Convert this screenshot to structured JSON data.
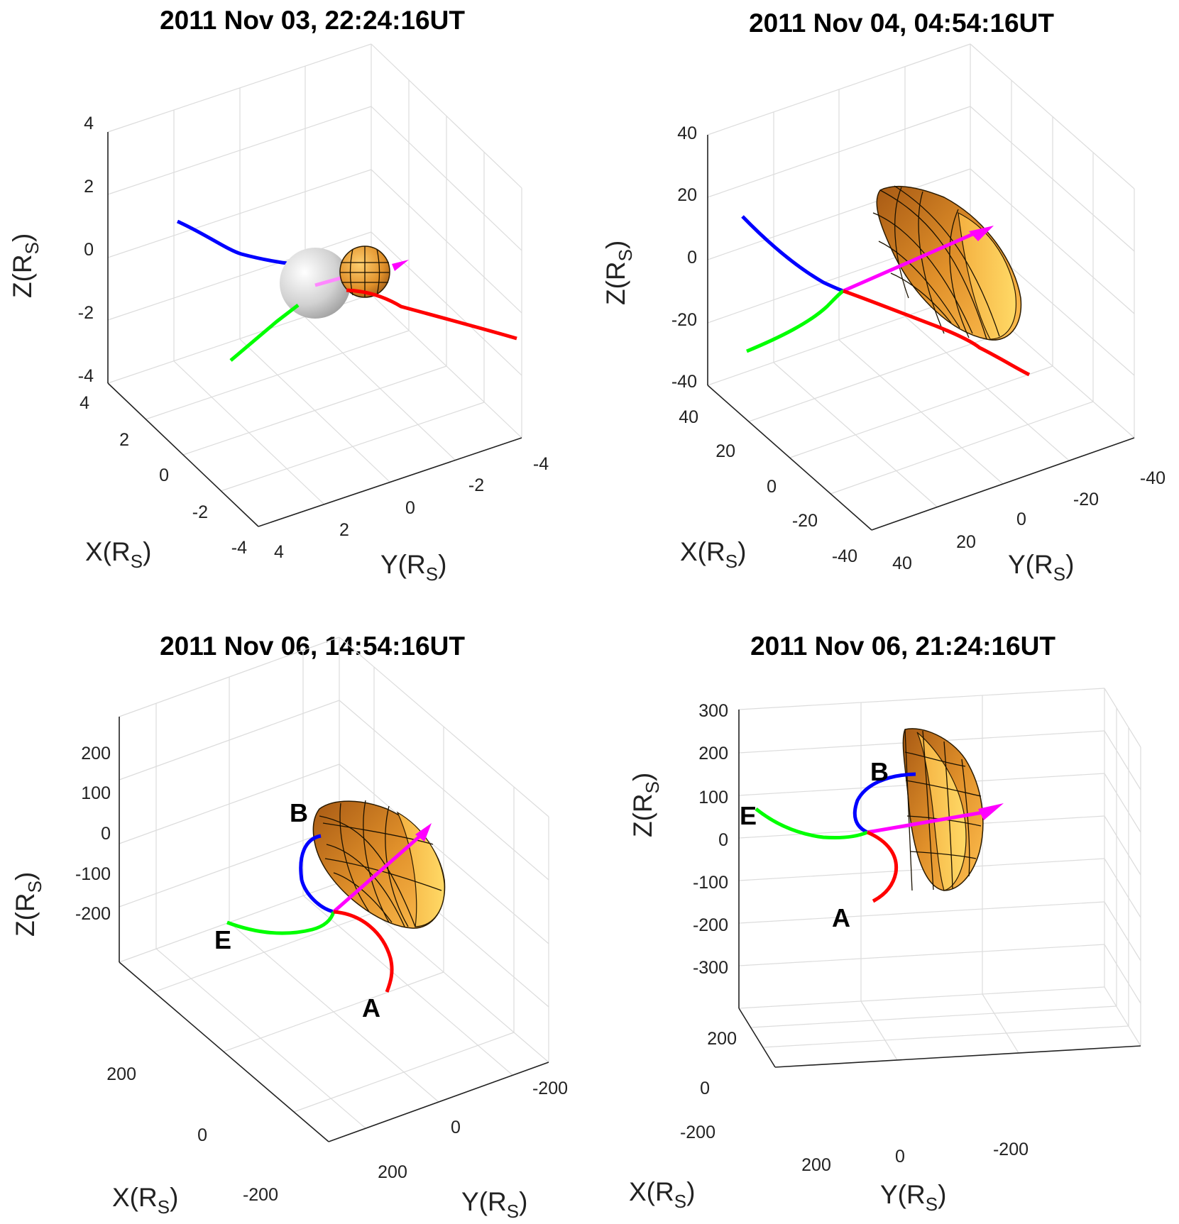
{
  "figure": {
    "curve_colors": {
      "A": "#ff0000",
      "B": "#0000ff",
      "E": "#00ff00",
      "axis": "#ff00ff"
    },
    "surface_color": "#e0902a",
    "sun_color": "#c8c8c8"
  },
  "chart_data": [
    {
      "type": "3d-line",
      "title": "2011 Nov 03, 22:24:16UT",
      "xlabel": "X(R",
      "ylabel": "Y(R",
      "zlabel": "Z(R",
      "label_sub": "S",
      "label_close": ")",
      "x_ticks": [
        "4",
        "2",
        "0",
        "-2",
        "-4"
      ],
      "y_ticks": [
        "4",
        "2",
        "0",
        "-2",
        "-4"
      ],
      "z_ticks": [
        "4",
        "2",
        "0",
        "-2",
        "-4"
      ],
      "xlim": [
        -4,
        4
      ],
      "ylim": [
        -4,
        4
      ],
      "zlim": [
        -4,
        4
      ],
      "curves": [
        {
          "name": "blue-line",
          "color": "#0000ff"
        },
        {
          "name": "green-line",
          "color": "#00ff00"
        },
        {
          "name": "red-line",
          "color": "#ff0000"
        },
        {
          "name": "magenta-axis",
          "color": "#ff00ff"
        }
      ],
      "objects": [
        "Sun sphere",
        "CME shell"
      ],
      "curve_labels": []
    },
    {
      "type": "3d-line",
      "title": "2011 Nov 04, 04:54:16UT",
      "xlabel": "X(R",
      "ylabel": "Y(R",
      "zlabel": "Z(R",
      "label_sub": "S",
      "label_close": ")",
      "x_ticks": [
        "40",
        "20",
        "0",
        "-20",
        "-40"
      ],
      "y_ticks": [
        "40",
        "20",
        "0",
        "-20",
        "-40"
      ],
      "z_ticks": [
        "40",
        "20",
        "0",
        "-20",
        "-40"
      ],
      "xlim": [
        -40,
        40
      ],
      "ylim": [
        -40,
        40
      ],
      "zlim": [
        -40,
        40
      ],
      "curves": [
        {
          "name": "blue-line",
          "color": "#0000ff"
        },
        {
          "name": "green-line",
          "color": "#00ff00"
        },
        {
          "name": "red-line",
          "color": "#ff0000"
        },
        {
          "name": "magenta-axis",
          "color": "#ff00ff"
        }
      ],
      "objects": [
        "CME shell"
      ],
      "curve_labels": []
    },
    {
      "type": "3d-line",
      "title": "2011 Nov 06, 14:54:16UT",
      "xlabel": "X(R",
      "ylabel": "Y(R",
      "zlabel": "Z(R",
      "label_sub": "S",
      "label_close": ")",
      "x_ticks": [
        "200",
        "0",
        "-200"
      ],
      "y_ticks": [
        "200",
        "0",
        "-200"
      ],
      "z_ticks": [
        "200",
        "100",
        "0",
        "-100",
        "-200"
      ],
      "xlim": [
        -280,
        280
      ],
      "ylim": [
        -280,
        280
      ],
      "zlim": [
        -280,
        280
      ],
      "curves": [
        {
          "name": "blue-line",
          "color": "#0000ff"
        },
        {
          "name": "green-line",
          "color": "#00ff00"
        },
        {
          "name": "red-line",
          "color": "#ff0000"
        },
        {
          "name": "magenta-axis",
          "color": "#ff00ff"
        }
      ],
      "objects": [
        "CME shell"
      ],
      "curve_labels": [
        "B",
        "E",
        "A"
      ]
    },
    {
      "type": "3d-line",
      "title": "2011 Nov 06, 21:24:16UT",
      "xlabel": "X(R",
      "ylabel": "Y(R",
      "zlabel": "Z(R",
      "label_sub": "S",
      "label_close": ")",
      "x_ticks": [
        "200",
        "0",
        "-200"
      ],
      "y_ticks": [
        "200",
        "0",
        "-200"
      ],
      "z_ticks": [
        "300",
        "200",
        "100",
        "0",
        "-100",
        "-200",
        "-300"
      ],
      "xlim": [
        -280,
        280
      ],
      "ylim": [
        -280,
        280
      ],
      "zlim": [
        -320,
        320
      ],
      "curves": [
        {
          "name": "blue-line",
          "color": "#0000ff"
        },
        {
          "name": "green-line",
          "color": "#00ff00"
        },
        {
          "name": "red-line",
          "color": "#ff0000"
        },
        {
          "name": "magenta-axis",
          "color": "#ff00ff"
        }
      ],
      "objects": [
        "CME shell"
      ],
      "curve_labels": [
        "B",
        "E",
        "A"
      ]
    }
  ]
}
